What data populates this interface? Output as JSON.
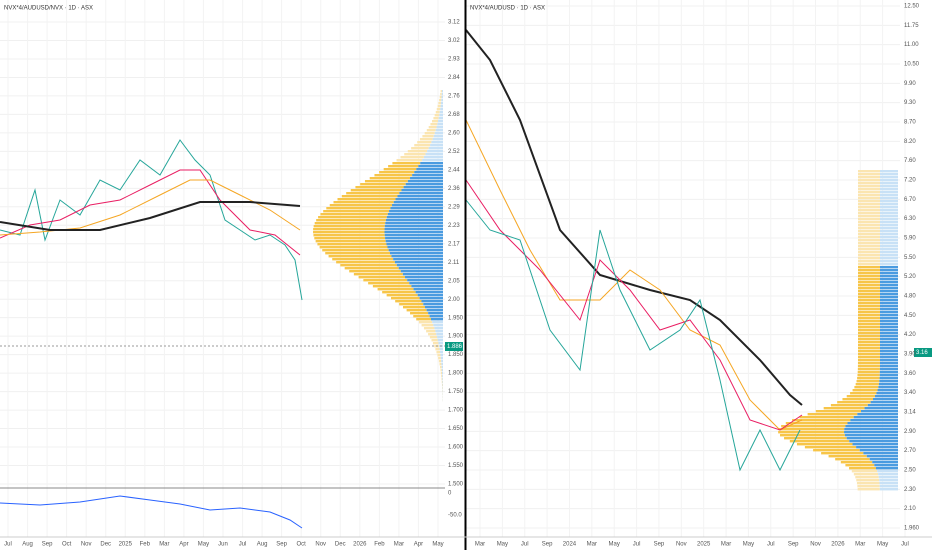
{
  "left_panel": {
    "title": "NVX*4/AUDUSD/NVX · 1D · ASX",
    "price_labels": [
      "3.12",
      "3.02",
      "2.93",
      "2.84",
      "2.76",
      "2.68",
      "2.60",
      "2.52",
      "2.44",
      "2.36",
      "2.29",
      "2.23",
      "2.17",
      "2.11",
      "2.05",
      "2.00",
      "1.950",
      "1.900",
      "1.850",
      "1.800",
      "1.750",
      "1.700",
      "1.650",
      "1.600",
      "1.550",
      "1.500"
    ],
    "current_price": "1.886",
    "indicator_labels": [
      "0",
      "-50.0"
    ],
    "time_labels": [
      "Jul",
      "Aug",
      "Sep",
      "Oct",
      "Nov",
      "Dec",
      "2025",
      "Feb",
      "Mar",
      "Apr",
      "May",
      "Jun",
      "Jul",
      "Aug",
      "Sep",
      "Oct",
      "Nov",
      "Dec",
      "2026",
      "Feb",
      "Mar",
      "Apr",
      "May"
    ]
  },
  "right_panel": {
    "title": "NVX*4/AUDUSD · 1D · ASX",
    "price_labels": [
      "12.50",
      "11.75",
      "11.00",
      "10.50",
      "9.90",
      "9.30",
      "8.70",
      "8.20",
      "7.60",
      "7.20",
      "6.70",
      "6.30",
      "5.90",
      "5.50",
      "5.20",
      "4.80",
      "4.50",
      "4.20",
      "3.90",
      "3.60",
      "3.40",
      "3.14",
      "2.90",
      "2.70",
      "2.50",
      "2.30",
      "2.10",
      "1.960"
    ],
    "current_price": "3.16",
    "time_labels": [
      "Mar",
      "May",
      "Jul",
      "Sep",
      "2024",
      "Mar",
      "May",
      "Jul",
      "Sep",
      "Nov",
      "2025",
      "Mar",
      "May",
      "Jul",
      "Sep",
      "Nov",
      "2026",
      "Mar",
      "May",
      "Jul"
    ]
  }
}
